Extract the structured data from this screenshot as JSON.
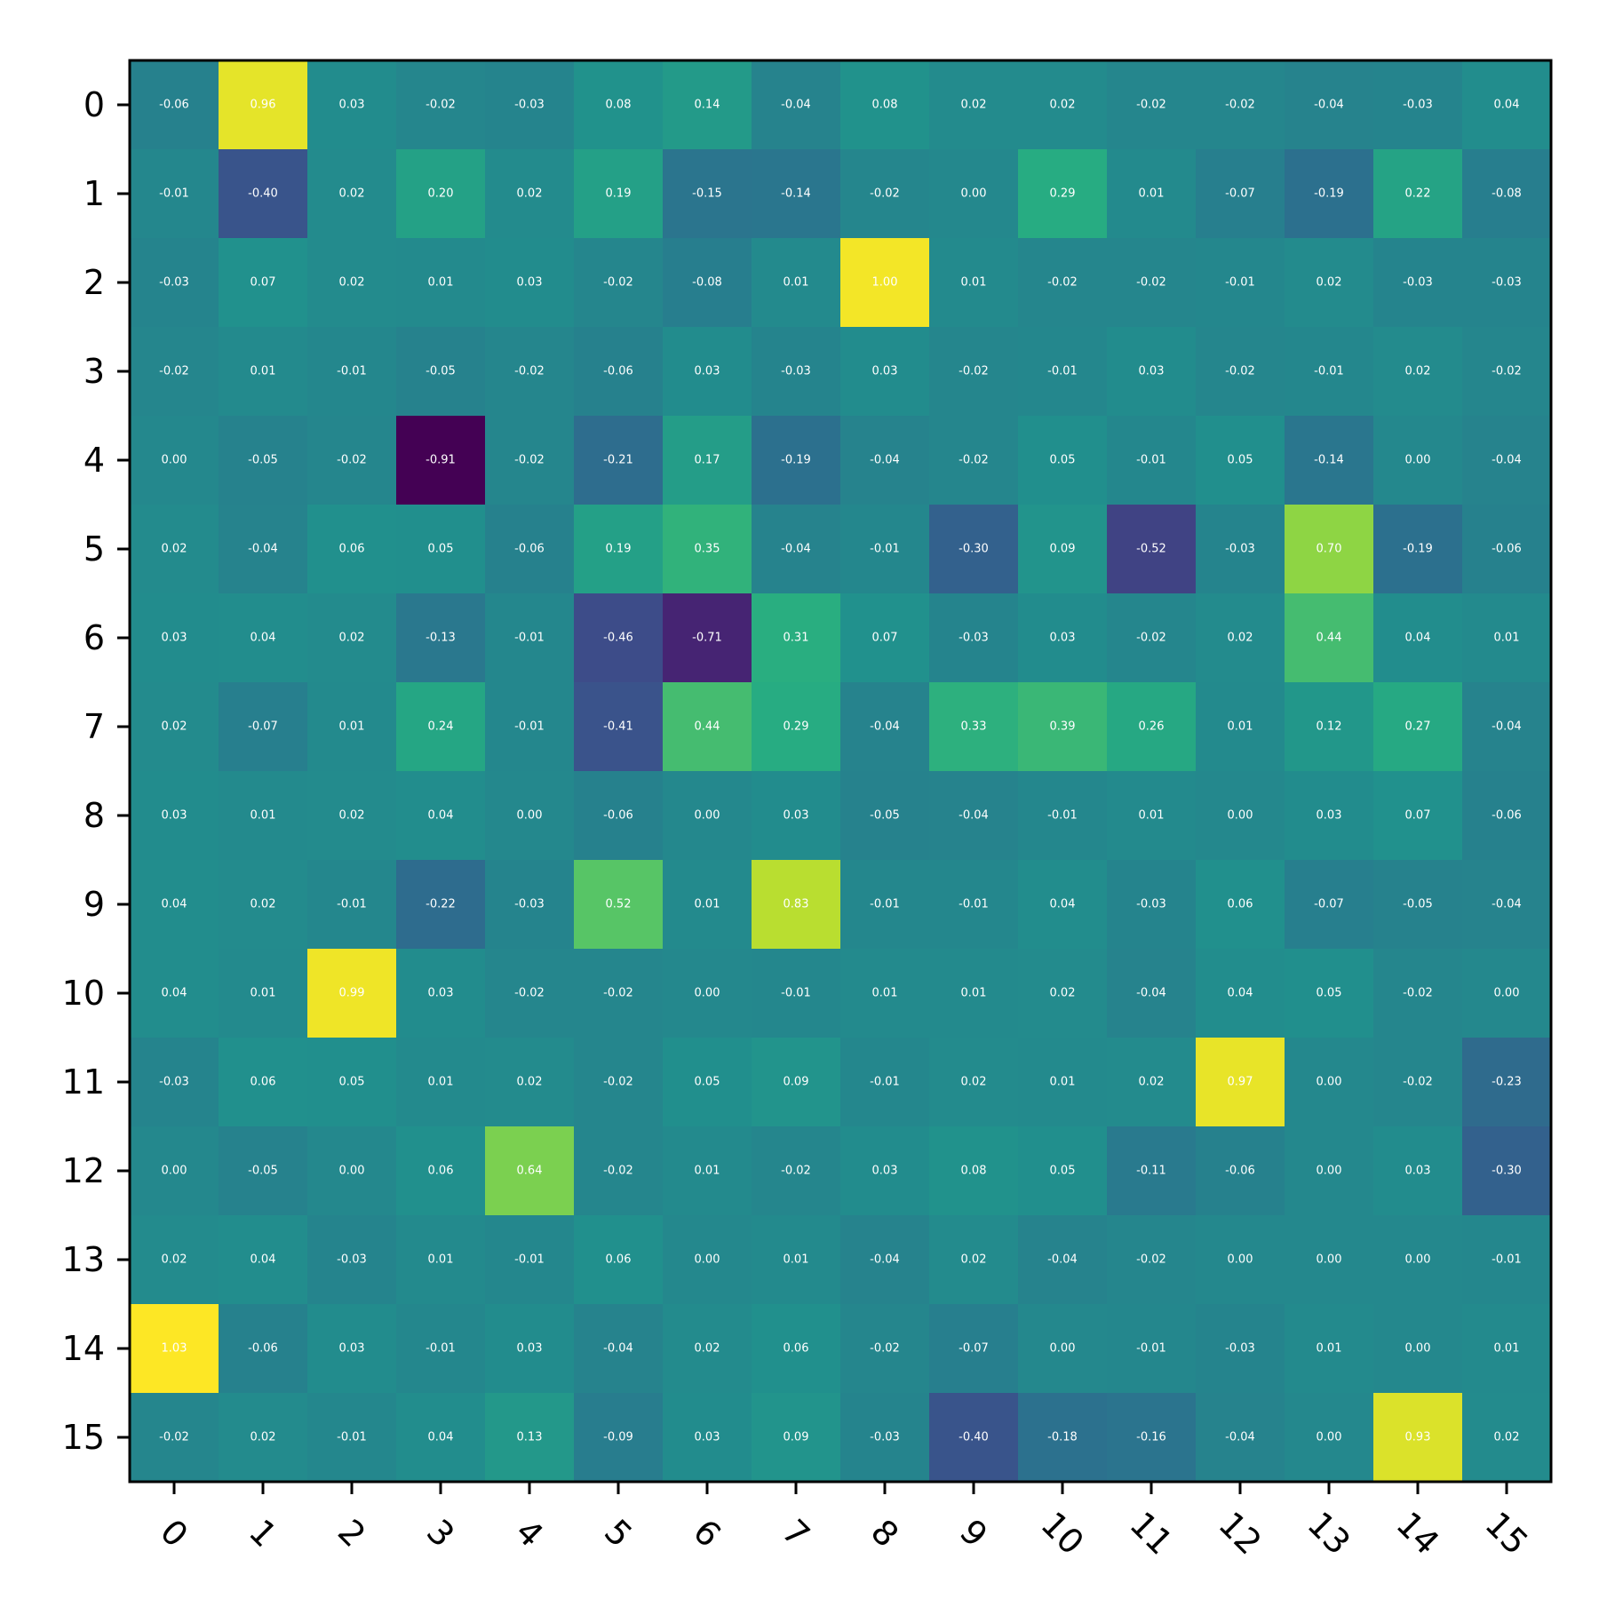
{
  "chart_data": {
    "type": "heatmap",
    "title": "",
    "xlabel": "",
    "ylabel": "",
    "x_categories": [
      "0",
      "1",
      "2",
      "3",
      "4",
      "5",
      "6",
      "7",
      "8",
      "9",
      "10",
      "11",
      "12",
      "13",
      "14",
      "15"
    ],
    "y_categories": [
      "0",
      "1",
      "2",
      "3",
      "4",
      "5",
      "6",
      "7",
      "8",
      "9",
      "10",
      "11",
      "12",
      "13",
      "14",
      "15"
    ],
    "colormap": "viridis",
    "value_range": [
      -0.91,
      1.03
    ],
    "grid": false,
    "colorbar": false,
    "x_tick_rotation_deg": 45,
    "values": [
      [
        -0.06,
        0.96,
        0.03,
        -0.02,
        -0.03,
        0.08,
        0.14,
        -0.04,
        0.08,
        0.02,
        0.02,
        -0.02,
        -0.02,
        -0.04,
        -0.03,
        0.04
      ],
      [
        -0.01,
        -0.4,
        0.02,
        0.2,
        0.02,
        0.19,
        -0.15,
        -0.14,
        -0.02,
        0.0,
        0.29,
        0.01,
        -0.07,
        -0.19,
        0.22,
        -0.08
      ],
      [
        -0.03,
        0.07,
        0.02,
        0.01,
        0.03,
        -0.02,
        -0.08,
        0.01,
        1.0,
        0.01,
        -0.02,
        -0.02,
        -0.01,
        0.02,
        -0.03,
        -0.03
      ],
      [
        -0.02,
        0.01,
        -0.01,
        -0.05,
        -0.02,
        -0.06,
        0.03,
        -0.03,
        0.03,
        -0.02,
        -0.01,
        0.03,
        -0.02,
        -0.01,
        0.02,
        -0.02
      ],
      [
        -0.0,
        -0.05,
        -0.02,
        -0.91,
        -0.02,
        -0.21,
        0.17,
        -0.19,
        -0.04,
        -0.02,
        0.05,
        -0.01,
        0.05,
        -0.14,
        -0.0,
        -0.04
      ],
      [
        0.02,
        -0.04,
        0.06,
        0.05,
        -0.06,
        0.19,
        0.35,
        -0.04,
        -0.01,
        -0.3,
        0.09,
        -0.52,
        -0.03,
        0.7,
        -0.19,
        -0.06
      ],
      [
        0.03,
        0.04,
        0.02,
        -0.13,
        -0.01,
        -0.46,
        -0.71,
        0.31,
        0.07,
        -0.03,
        0.03,
        -0.02,
        0.02,
        0.44,
        0.04,
        0.01
      ],
      [
        0.02,
        -0.07,
        0.01,
        0.24,
        -0.01,
        -0.41,
        0.44,
        0.29,
        -0.04,
        0.33,
        0.39,
        0.26,
        0.01,
        0.12,
        0.27,
        -0.04
      ],
      [
        0.03,
        0.01,
        0.02,
        0.04,
        -0.0,
        -0.06,
        0.0,
        0.03,
        -0.05,
        -0.04,
        -0.01,
        0.01,
        -0.0,
        0.03,
        0.07,
        -0.06
      ],
      [
        0.04,
        0.02,
        -0.01,
        -0.22,
        -0.03,
        0.52,
        0.01,
        0.83,
        -0.01,
        -0.01,
        0.04,
        -0.03,
        0.06,
        -0.07,
        -0.05,
        -0.04
      ],
      [
        0.04,
        0.01,
        0.99,
        0.03,
        -0.02,
        -0.02,
        0.0,
        -0.01,
        0.01,
        0.01,
        0.02,
        -0.04,
        0.04,
        0.05,
        -0.02,
        0.0
      ],
      [
        -0.03,
        0.06,
        0.05,
        0.01,
        0.02,
        -0.02,
        0.05,
        0.09,
        -0.01,
        0.02,
        0.01,
        0.02,
        0.97,
        0.0,
        -0.02,
        -0.23
      ],
      [
        -0.0,
        -0.05,
        -0.0,
        0.06,
        0.64,
        -0.02,
        0.01,
        -0.02,
        0.03,
        0.08,
        0.05,
        -0.11,
        -0.06,
        -0.0,
        0.03,
        -0.3
      ],
      [
        0.02,
        0.04,
        -0.03,
        0.01,
        -0.01,
        0.06,
        0.0,
        0.01,
        -0.04,
        0.02,
        -0.04,
        -0.02,
        0.0,
        -0.0,
        -0.0,
        -0.01
      ],
      [
        1.03,
        -0.06,
        0.03,
        -0.01,
        0.03,
        -0.04,
        0.02,
        0.06,
        -0.02,
        -0.07,
        -0.0,
        -0.01,
        -0.03,
        0.01,
        0.0,
        0.01
      ],
      [
        -0.02,
        0.02,
        -0.01,
        0.04,
        0.13,
        -0.09,
        0.03,
        0.09,
        -0.03,
        -0.4,
        -0.18,
        -0.16,
        -0.04,
        0.0,
        0.93,
        0.02
      ]
    ]
  }
}
